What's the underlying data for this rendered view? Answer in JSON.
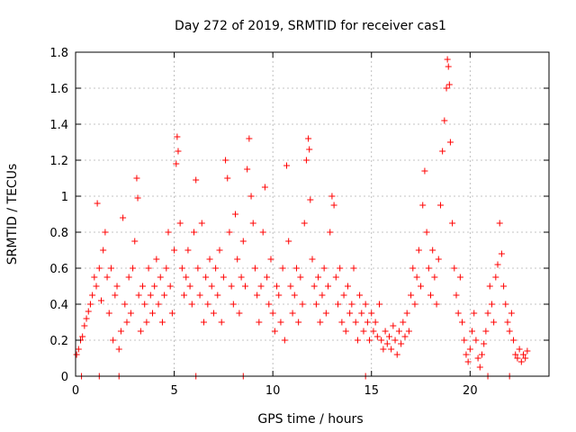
{
  "chart_data": {
    "type": "scatter",
    "title": "Day 272 of 2019, SRMTID for receiver cas1",
    "xlabel": "GPS time / hours",
    "ylabel": "SRMTID / TECUs",
    "xlim": [
      0,
      24
    ],
    "ylim": [
      0,
      1.8
    ],
    "xticks": [
      0,
      5,
      10,
      15,
      20
    ],
    "xtick_labels": [
      "0",
      "5",
      "10",
      "15",
      "20"
    ],
    "yticks": [
      0,
      0.2,
      0.4,
      0.6,
      0.8,
      1,
      1.2,
      1.4,
      1.6,
      1.8
    ],
    "ytick_labels": [
      "0",
      "0.2",
      "0.4",
      "0.6",
      "0.8",
      "1",
      "1.2",
      "1.4",
      "1.6",
      "1.8"
    ],
    "grid": true,
    "marker": "plus",
    "color": "#ff0000",
    "series": [
      {
        "name": "cas1",
        "points": [
          [
            0.05,
            0.12
          ],
          [
            0.15,
            0.15
          ],
          [
            0.25,
            0.2
          ],
          [
            0.35,
            0.22
          ],
          [
            0.45,
            0.28
          ],
          [
            0.55,
            0.32
          ],
          [
            0.65,
            0.36
          ],
          [
            0.75,
            0.4
          ],
          [
            0.85,
            0.45
          ],
          [
            0.95,
            0.55
          ],
          [
            1.05,
            0.5
          ],
          [
            1.1,
            0.96
          ],
          [
            1.2,
            0.6
          ],
          [
            1.3,
            0.42
          ],
          [
            1.4,
            0.7
          ],
          [
            1.5,
            0.8
          ],
          [
            1.6,
            0.55
          ],
          [
            1.7,
            0.35
          ],
          [
            1.8,
            0.6
          ],
          [
            1.9,
            0.2
          ],
          [
            2.0,
            0.45
          ],
          [
            2.1,
            0.5
          ],
          [
            2.2,
            0.15
          ],
          [
            2.3,
            0.25
          ],
          [
            2.4,
            0.88
          ],
          [
            2.5,
            0.4
          ],
          [
            2.6,
            0.3
          ],
          [
            2.7,
            0.55
          ],
          [
            2.8,
            0.35
          ],
          [
            2.9,
            0.6
          ],
          [
            3.0,
            0.75
          ],
          [
            3.1,
            1.1
          ],
          [
            3.15,
            0.99
          ],
          [
            3.2,
            0.45
          ],
          [
            3.3,
            0.25
          ],
          [
            3.4,
            0.5
          ],
          [
            3.5,
            0.4
          ],
          [
            3.6,
            0.3
          ],
          [
            3.7,
            0.6
          ],
          [
            3.8,
            0.45
          ],
          [
            3.9,
            0.35
          ],
          [
            4.0,
            0.5
          ],
          [
            4.1,
            0.65
          ],
          [
            4.2,
            0.4
          ],
          [
            4.3,
            0.55
          ],
          [
            4.4,
            0.3
          ],
          [
            4.5,
            0.45
          ],
          [
            4.6,
            0.6
          ],
          [
            4.7,
            0.8
          ],
          [
            4.8,
            0.5
          ],
          [
            4.9,
            0.35
          ],
          [
            5.0,
            0.7
          ],
          [
            5.1,
            1.18
          ],
          [
            5.15,
            1.33
          ],
          [
            5.2,
            1.25
          ],
          [
            5.3,
            0.85
          ],
          [
            5.4,
            0.6
          ],
          [
            5.5,
            0.45
          ],
          [
            5.6,
            0.55
          ],
          [
            5.7,
            0.7
          ],
          [
            5.8,
            0.5
          ],
          [
            5.9,
            0.4
          ],
          [
            6.0,
            0.8
          ],
          [
            6.1,
            1.09
          ],
          [
            6.2,
            0.6
          ],
          [
            6.3,
            0.45
          ],
          [
            6.4,
            0.85
          ],
          [
            6.5,
            0.3
          ],
          [
            6.6,
            0.55
          ],
          [
            6.7,
            0.4
          ],
          [
            6.8,
            0.65
          ],
          [
            6.9,
            0.5
          ],
          [
            7.0,
            0.35
          ],
          [
            7.1,
            0.6
          ],
          [
            7.2,
            0.45
          ],
          [
            7.3,
            0.7
          ],
          [
            7.4,
            0.3
          ],
          [
            7.5,
            0.55
          ],
          [
            7.6,
            1.2
          ],
          [
            7.7,
            1.1
          ],
          [
            7.8,
            0.8
          ],
          [
            7.9,
            0.5
          ],
          [
            8.0,
            0.4
          ],
          [
            8.1,
            0.9
          ],
          [
            8.2,
            0.65
          ],
          [
            8.3,
            0.35
          ],
          [
            8.4,
            0.55
          ],
          [
            8.5,
            0.75
          ],
          [
            8.6,
            0.5
          ],
          [
            8.7,
            1.15
          ],
          [
            8.8,
            1.32
          ],
          [
            8.9,
            1.0
          ],
          [
            9.0,
            0.85
          ],
          [
            9.1,
            0.6
          ],
          [
            9.2,
            0.45
          ],
          [
            9.3,
            0.3
          ],
          [
            9.4,
            0.5
          ],
          [
            9.5,
            0.8
          ],
          [
            9.6,
            1.05
          ],
          [
            9.7,
            0.55
          ],
          [
            9.8,
            0.4
          ],
          [
            9.9,
            0.65
          ],
          [
            10.0,
            0.35
          ],
          [
            10.1,
            0.25
          ],
          [
            10.2,
            0.5
          ],
          [
            10.3,
            0.45
          ],
          [
            10.4,
            0.3
          ],
          [
            10.5,
            0.6
          ],
          [
            10.6,
            0.2
          ],
          [
            10.7,
            1.17
          ],
          [
            10.8,
            0.75
          ],
          [
            10.9,
            0.5
          ],
          [
            11.0,
            0.35
          ],
          [
            11.1,
            0.45
          ],
          [
            11.2,
            0.6
          ],
          [
            11.3,
            0.3
          ],
          [
            11.4,
            0.55
          ],
          [
            11.5,
            0.4
          ],
          [
            11.6,
            0.85
          ],
          [
            11.7,
            1.2
          ],
          [
            11.8,
            1.32
          ],
          [
            11.85,
            1.26
          ],
          [
            11.9,
            0.98
          ],
          [
            12.0,
            0.65
          ],
          [
            12.1,
            0.5
          ],
          [
            12.2,
            0.4
          ],
          [
            12.3,
            0.55
          ],
          [
            12.4,
            0.3
          ],
          [
            12.5,
            0.45
          ],
          [
            12.6,
            0.6
          ],
          [
            12.7,
            0.35
          ],
          [
            12.8,
            0.5
          ],
          [
            12.9,
            0.8
          ],
          [
            13.0,
            1.0
          ],
          [
            13.1,
            0.95
          ],
          [
            13.2,
            0.55
          ],
          [
            13.3,
            0.4
          ],
          [
            13.4,
            0.6
          ],
          [
            13.5,
            0.3
          ],
          [
            13.6,
            0.45
          ],
          [
            13.7,
            0.25
          ],
          [
            13.8,
            0.5
          ],
          [
            13.9,
            0.35
          ],
          [
            14.0,
            0.4
          ],
          [
            14.1,
            0.6
          ],
          [
            14.2,
            0.3
          ],
          [
            14.3,
            0.2
          ],
          [
            14.4,
            0.45
          ],
          [
            14.5,
            0.35
          ],
          [
            14.6,
            0.25
          ],
          [
            14.7,
            0.4
          ],
          [
            14.8,
            0.3
          ],
          [
            14.9,
            0.2
          ],
          [
            15.0,
            0.35
          ],
          [
            15.1,
            0.25
          ],
          [
            15.2,
            0.3
          ],
          [
            15.3,
            0.22
          ],
          [
            15.4,
            0.4
          ],
          [
            15.5,
            0.2
          ],
          [
            15.6,
            0.15
          ],
          [
            15.7,
            0.25
          ],
          [
            15.8,
            0.18
          ],
          [
            15.9,
            0.22
          ],
          [
            16.0,
            0.15
          ],
          [
            16.1,
            0.28
          ],
          [
            16.2,
            0.2
          ],
          [
            16.3,
            0.12
          ],
          [
            16.4,
            0.25
          ],
          [
            16.5,
            0.18
          ],
          [
            16.6,
            0.3
          ],
          [
            16.7,
            0.22
          ],
          [
            16.8,
            0.35
          ],
          [
            16.9,
            0.25
          ],
          [
            17.0,
            0.45
          ],
          [
            17.1,
            0.6
          ],
          [
            17.2,
            0.4
          ],
          [
            17.3,
            0.55
          ],
          [
            17.4,
            0.7
          ],
          [
            17.5,
            0.5
          ],
          [
            17.6,
            0.95
          ],
          [
            17.7,
            1.14
          ],
          [
            17.8,
            0.8
          ],
          [
            17.9,
            0.6
          ],
          [
            18.0,
            0.45
          ],
          [
            18.1,
            0.7
          ],
          [
            18.2,
            0.55
          ],
          [
            18.3,
            0.4
          ],
          [
            18.4,
            0.65
          ],
          [
            18.5,
            0.95
          ],
          [
            18.6,
            1.25
          ],
          [
            18.7,
            1.42
          ],
          [
            18.8,
            1.6
          ],
          [
            18.85,
            1.76
          ],
          [
            18.9,
            1.72
          ],
          [
            18.95,
            1.62
          ],
          [
            19.0,
            1.3
          ],
          [
            19.1,
            0.85
          ],
          [
            19.2,
            0.6
          ],
          [
            19.3,
            0.45
          ],
          [
            19.4,
            0.35
          ],
          [
            19.5,
            0.55
          ],
          [
            19.6,
            0.3
          ],
          [
            19.7,
            0.2
          ],
          [
            19.8,
            0.12
          ],
          [
            19.9,
            0.08
          ],
          [
            20.0,
            0.15
          ],
          [
            20.1,
            0.25
          ],
          [
            20.2,
            0.35
          ],
          [
            20.3,
            0.2
          ],
          [
            20.4,
            0.1
          ],
          [
            20.5,
            0.05
          ],
          [
            20.6,
            0.12
          ],
          [
            20.7,
            0.18
          ],
          [
            20.8,
            0.25
          ],
          [
            20.9,
            0.35
          ],
          [
            21.0,
            0.5
          ],
          [
            21.1,
            0.4
          ],
          [
            21.2,
            0.3
          ],
          [
            21.3,
            0.55
          ],
          [
            21.4,
            0.62
          ],
          [
            21.5,
            0.85
          ],
          [
            21.6,
            0.68
          ],
          [
            21.7,
            0.5
          ],
          [
            21.8,
            0.4
          ],
          [
            21.9,
            0.3
          ],
          [
            22.0,
            0.25
          ],
          [
            22.1,
            0.35
          ],
          [
            22.2,
            0.2
          ],
          [
            22.3,
            0.12
          ],
          [
            22.4,
            0.1
          ],
          [
            22.5,
            0.15
          ],
          [
            22.6,
            0.08
          ],
          [
            22.7,
            0.12
          ],
          [
            22.8,
            0.1
          ],
          [
            22.9,
            0.14
          ],
          [
            0.3,
            0.0
          ],
          [
            1.2,
            0.0
          ],
          [
            2.2,
            0.0
          ],
          [
            6.1,
            0.0
          ],
          [
            8.5,
            0.0
          ],
          [
            14.7,
            0.0
          ],
          [
            20.9,
            0.0
          ],
          [
            22.0,
            0.0
          ]
        ]
      }
    ]
  }
}
